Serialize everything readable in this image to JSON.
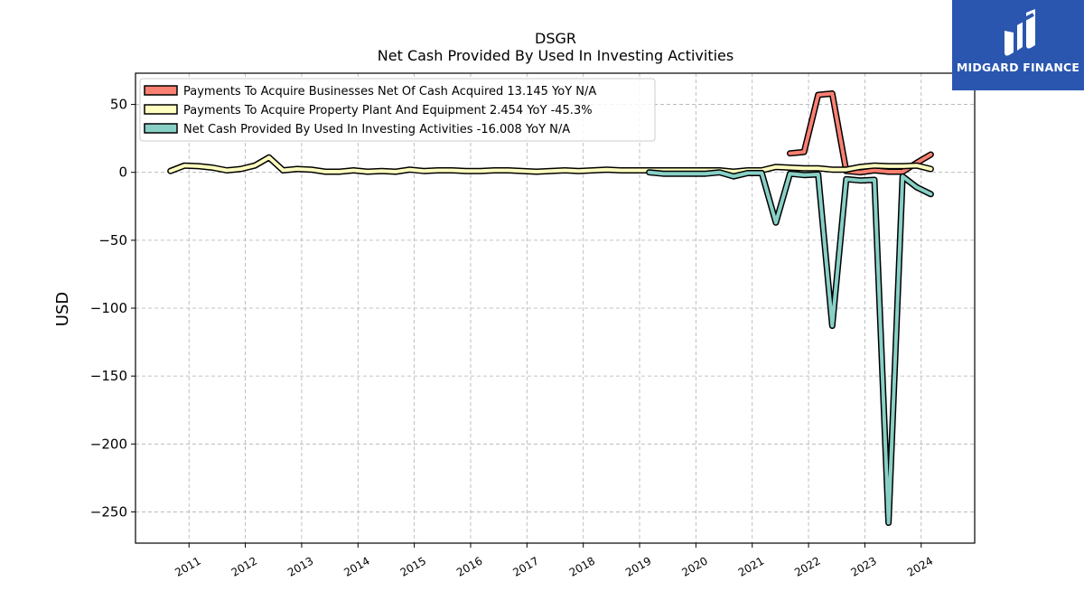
{
  "brand": {
    "name": "MIDGARD FINANCE",
    "color": "#2a56b0"
  },
  "chart_data": {
    "type": "line",
    "title": "DSGR",
    "subtitle": "Net Cash Provided By Used In Investing Activities",
    "xlabel": "",
    "ylabel": "USD",
    "xlim": [
      2010.05,
      2024.95
    ],
    "ylim": [
      -273,
      73
    ],
    "yticks": [
      50,
      0,
      -50,
      -100,
      -150,
      -200,
      -250
    ],
    "ytick_labels": [
      "50",
      "0",
      "−50",
      "−100",
      "−150",
      "−200",
      "−250"
    ],
    "xticks": [
      2011,
      2012,
      2013,
      2014,
      2015,
      2016,
      2017,
      2018,
      2019,
      2020,
      2021,
      2022,
      2023,
      2024
    ],
    "xtick_labels": [
      "2011",
      "2012",
      "2013",
      "2014",
      "2015",
      "2016",
      "2017",
      "2018",
      "2019",
      "2020",
      "2021",
      "2022",
      "2023",
      "2024"
    ],
    "grid": true,
    "legend_position": "top-left",
    "series": [
      {
        "name": "Payments To Acquire Businesses Net Of Cash Acquired  13.145 YoY N/A",
        "color": "#fa8072",
        "points": [
          [
            2021.67,
            14
          ],
          [
            2021.92,
            15
          ],
          [
            2022.17,
            57
          ],
          [
            2022.42,
            58
          ],
          [
            2022.67,
            1
          ],
          [
            2022.92,
            0
          ],
          [
            2023.17,
            1.5
          ],
          [
            2023.42,
            0.5
          ],
          [
            2023.67,
            0.5
          ],
          [
            2023.92,
            7
          ],
          [
            2024.17,
            13.145
          ]
        ]
      },
      {
        "name": "Payments To Acquire Property Plant And Equipment  2.454 YoY -45.3%",
        "color": "#ffffc0",
        "points": [
          [
            2010.67,
            1
          ],
          [
            2010.92,
            5
          ],
          [
            2011.17,
            4.5
          ],
          [
            2011.42,
            3.5
          ],
          [
            2011.67,
            1.5
          ],
          [
            2011.92,
            2.5
          ],
          [
            2012.17,
            5
          ],
          [
            2012.42,
            11
          ],
          [
            2012.67,
            1.5
          ],
          [
            2012.92,
            2.5
          ],
          [
            2013.17,
            2
          ],
          [
            2013.42,
            0.5
          ],
          [
            2013.67,
            0.5
          ],
          [
            2013.92,
            1.5
          ],
          [
            2014.17,
            0.5
          ],
          [
            2014.42,
            1
          ],
          [
            2014.67,
            0.5
          ],
          [
            2014.92,
            2
          ],
          [
            2015.17,
            1
          ],
          [
            2015.42,
            1.5
          ],
          [
            2015.67,
            1.5
          ],
          [
            2015.92,
            1
          ],
          [
            2016.17,
            1
          ],
          [
            2016.42,
            1.5
          ],
          [
            2016.67,
            1.5
          ],
          [
            2016.92,
            1
          ],
          [
            2017.17,
            0.5
          ],
          [
            2017.42,
            1
          ],
          [
            2017.67,
            1.5
          ],
          [
            2017.92,
            1
          ],
          [
            2018.17,
            1.5
          ],
          [
            2018.42,
            2
          ],
          [
            2018.67,
            1.5
          ],
          [
            2018.92,
            1.5
          ],
          [
            2019.17,
            1.5
          ],
          [
            2019.42,
            1.5
          ],
          [
            2019.67,
            1.5
          ],
          [
            2019.92,
            1.5
          ],
          [
            2020.17,
            1.5
          ],
          [
            2020.42,
            1.5
          ],
          [
            2020.67,
            0.5
          ],
          [
            2020.92,
            1.5
          ],
          [
            2021.17,
            1.5
          ],
          [
            2021.42,
            4
          ],
          [
            2021.67,
            3.5
          ],
          [
            2021.92,
            3
          ],
          [
            2022.17,
            3
          ],
          [
            2022.42,
            2
          ],
          [
            2022.67,
            2
          ],
          [
            2022.92,
            4
          ],
          [
            2023.17,
            5
          ],
          [
            2023.42,
            4.5
          ],
          [
            2023.67,
            4.5
          ],
          [
            2023.92,
            5
          ],
          [
            2024.17,
            2.454
          ]
        ]
      },
      {
        "name": "Net Cash Provided By Used In Investing Activities  -16.008 YoY N/A",
        "color": "#88d0c6",
        "points": [
          [
            2019.17,
            0
          ],
          [
            2019.42,
            -1
          ],
          [
            2019.67,
            -1
          ],
          [
            2019.92,
            -1
          ],
          [
            2020.17,
            -1
          ],
          [
            2020.42,
            0
          ],
          [
            2020.67,
            -3
          ],
          [
            2020.92,
            -0.5
          ],
          [
            2021.17,
            -0.5
          ],
          [
            2021.42,
            -37
          ],
          [
            2021.67,
            -1
          ],
          [
            2021.92,
            -2
          ],
          [
            2022.17,
            -1.5
          ],
          [
            2022.42,
            -113
          ],
          [
            2022.67,
            -5
          ],
          [
            2022.92,
            -6
          ],
          [
            2023.17,
            -5.5
          ],
          [
            2023.42,
            -258
          ],
          [
            2023.67,
            -3
          ],
          [
            2023.92,
            -11
          ],
          [
            2024.17,
            -16.008
          ]
        ]
      }
    ]
  }
}
